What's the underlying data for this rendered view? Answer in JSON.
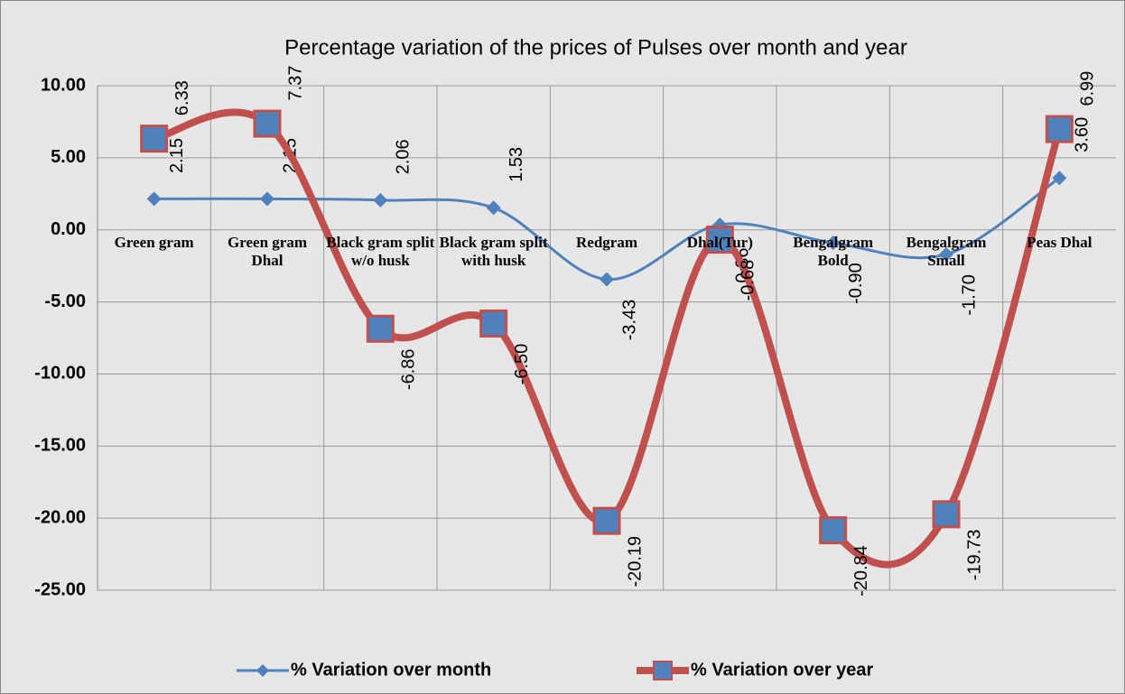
{
  "chart_data": {
    "type": "line",
    "title": "Percentage variation of the prices of Pulses over month and year",
    "categories": [
      "Green gram",
      "Green gram Dhal",
      "Black gram split w/o husk",
      "Black gram split with husk",
      "Redgram",
      "Dhal(Tur)",
      "Bengalgram Bold",
      "Bengalgram Small",
      "Peas Dhal"
    ],
    "series": [
      {
        "name": "% Variation over month",
        "color": "#4f81bd",
        "marker": "diamond",
        "values": [
          2.15,
          2.15,
          2.06,
          1.53,
          -3.43,
          0.36,
          -0.9,
          -1.7,
          3.6
        ],
        "value_labels": [
          "2.15",
          "2.15",
          "2.06",
          "1.53",
          "-3.43",
          "0.36",
          "-0.90",
          "-1.70",
          "3.60"
        ]
      },
      {
        "name": "% Variation over year",
        "color": "#c0504d",
        "marker": "square",
        "values": [
          6.33,
          7.37,
          -6.86,
          -6.5,
          -20.19,
          -0.68,
          -20.84,
          -19.73,
          6.99
        ],
        "value_labels": [
          "6.33",
          "7.37",
          "-6.86",
          "-6.50",
          "-20.19",
          "-0.68",
          "-20.84",
          "-19.73",
          "6.99"
        ]
      }
    ],
    "ylim": [
      -25,
      10
    ],
    "yticks": [
      {
        "value": -25,
        "label": "-25.00"
      },
      {
        "value": -20,
        "label": "-20.00"
      },
      {
        "value": -15,
        "label": "-15.00"
      },
      {
        "value": -10,
        "label": "-10.00"
      },
      {
        "value": -5,
        "label": "-5.00"
      },
      {
        "value": 0,
        "label": "0.00"
      },
      {
        "value": 5,
        "label": "5.00"
      },
      {
        "value": 10,
        "label": "10.00"
      }
    ],
    "grid": true,
    "legend": "bottom"
  }
}
